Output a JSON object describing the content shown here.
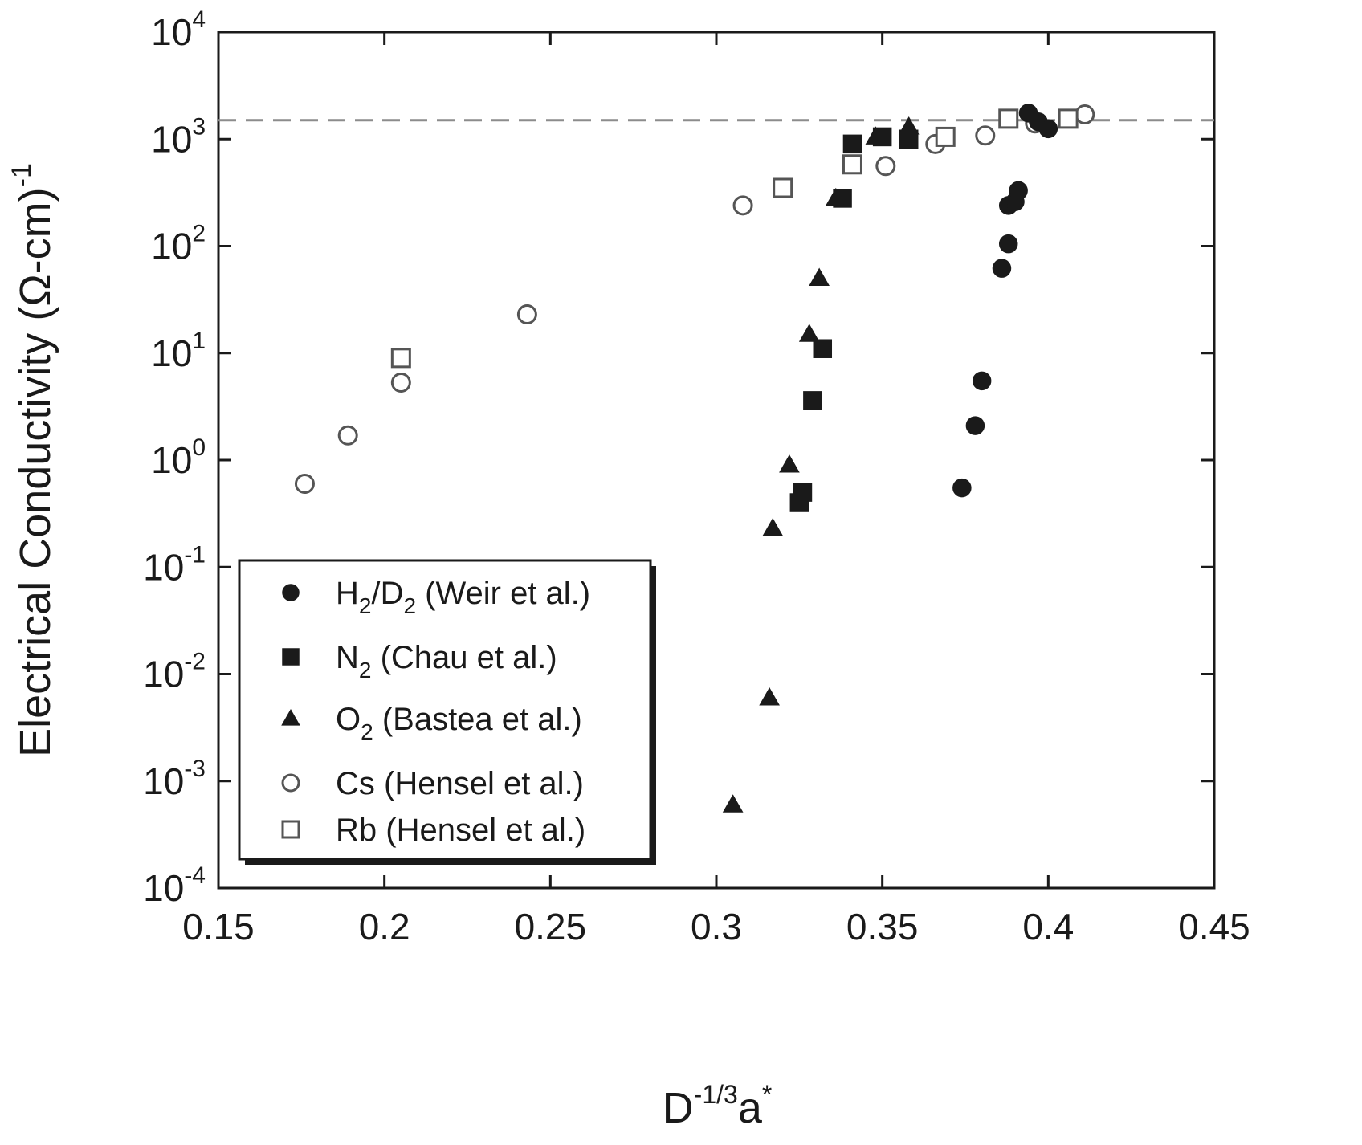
{
  "chart_data": {
    "type": "scatter",
    "title": "",
    "xlabel": {
      "base": "D",
      "sup": "-1/3",
      "rest": "a",
      "rest_sup": "*"
    },
    "ylabel": {
      "main": "Electrical Conductivity (Ω-cm)",
      "sup": "-1"
    },
    "xlim": [
      0.15,
      0.45
    ],
    "ylim_exp": [
      -4,
      4
    ],
    "y_scale": "log",
    "x_ticks": [
      "0.15",
      "0.2",
      "0.25",
      "0.3",
      "0.35",
      "0.4",
      "0.45"
    ],
    "y_ticks": [
      {
        "base": "10",
        "exp": "-4"
      },
      {
        "base": "10",
        "exp": "-3"
      },
      {
        "base": "10",
        "exp": "-2"
      },
      {
        "base": "10",
        "exp": "-1"
      },
      {
        "base": "10",
        "exp": "0"
      },
      {
        "base": "10",
        "exp": "1"
      },
      {
        "base": "10",
        "exp": "2"
      },
      {
        "base": "10",
        "exp": "3"
      },
      {
        "base": "10",
        "exp": "4"
      }
    ],
    "reference_line": {
      "y": 1500,
      "style": "dashed",
      "color": "#8c8c8c"
    },
    "legend_position": "bottom-left",
    "series": [
      {
        "name": "H2/D2 (Weir et al.)",
        "legend": [
          {
            "t": "H"
          },
          {
            "t": "2",
            "sub": true
          },
          {
            "t": "/D"
          },
          {
            "t": "2",
            "sub": true
          },
          {
            "t": " (Weir et al.)"
          }
        ],
        "marker": "circle",
        "filled": true,
        "points": [
          [
            0.374,
            0.55
          ],
          [
            0.378,
            2.1
          ],
          [
            0.38,
            5.5
          ],
          [
            0.386,
            62
          ],
          [
            0.388,
            105
          ],
          [
            0.388,
            240
          ],
          [
            0.39,
            260
          ],
          [
            0.391,
            330
          ],
          [
            0.394,
            1750
          ],
          [
            0.397,
            1450
          ],
          [
            0.4,
            1250
          ]
        ]
      },
      {
        "name": "N2 (Chau et al.)",
        "legend": [
          {
            "t": "N"
          },
          {
            "t": "2",
            "sub": true
          },
          {
            "t": " (Chau et al.)"
          }
        ],
        "marker": "square",
        "filled": true,
        "points": [
          [
            0.325,
            0.4
          ],
          [
            0.326,
            0.5
          ],
          [
            0.329,
            3.6
          ],
          [
            0.332,
            11
          ],
          [
            0.338,
            280
          ],
          [
            0.341,
            900
          ],
          [
            0.35,
            1050
          ],
          [
            0.358,
            1000
          ]
        ]
      },
      {
        "name": "O2 (Bastea et al.)",
        "legend": [
          {
            "t": "O"
          },
          {
            "t": "2",
            "sub": true
          },
          {
            "t": " (Bastea et al.)"
          }
        ],
        "marker": "triangle",
        "filled": true,
        "points": [
          [
            0.305,
            0.0006
          ],
          [
            0.316,
            0.006
          ],
          [
            0.317,
            0.23
          ],
          [
            0.322,
            0.9
          ],
          [
            0.328,
            15
          ],
          [
            0.331,
            50
          ],
          [
            0.336,
            280
          ],
          [
            0.348,
            1050
          ],
          [
            0.358,
            1300
          ]
        ]
      },
      {
        "name": "Cs (Hensel et al.)",
        "legend": [
          {
            "t": "Cs (Hensel et al.)"
          }
        ],
        "marker": "circle",
        "filled": false,
        "points": [
          [
            0.176,
            0.6
          ],
          [
            0.189,
            1.7
          ],
          [
            0.205,
            5.3
          ],
          [
            0.243,
            23
          ],
          [
            0.308,
            240
          ],
          [
            0.351,
            560
          ],
          [
            0.366,
            900
          ],
          [
            0.381,
            1080
          ],
          [
            0.396,
            1400
          ],
          [
            0.411,
            1700
          ]
        ]
      },
      {
        "name": "Rb (Hensel et al.)",
        "legend": [
          {
            "t": "Rb (Hensel et al.)"
          }
        ],
        "marker": "square",
        "filled": false,
        "points": [
          [
            0.205,
            9
          ],
          [
            0.32,
            350
          ],
          [
            0.341,
            580
          ],
          [
            0.369,
            1050
          ],
          [
            0.388,
            1550
          ],
          [
            0.406,
            1550
          ]
        ]
      }
    ]
  }
}
